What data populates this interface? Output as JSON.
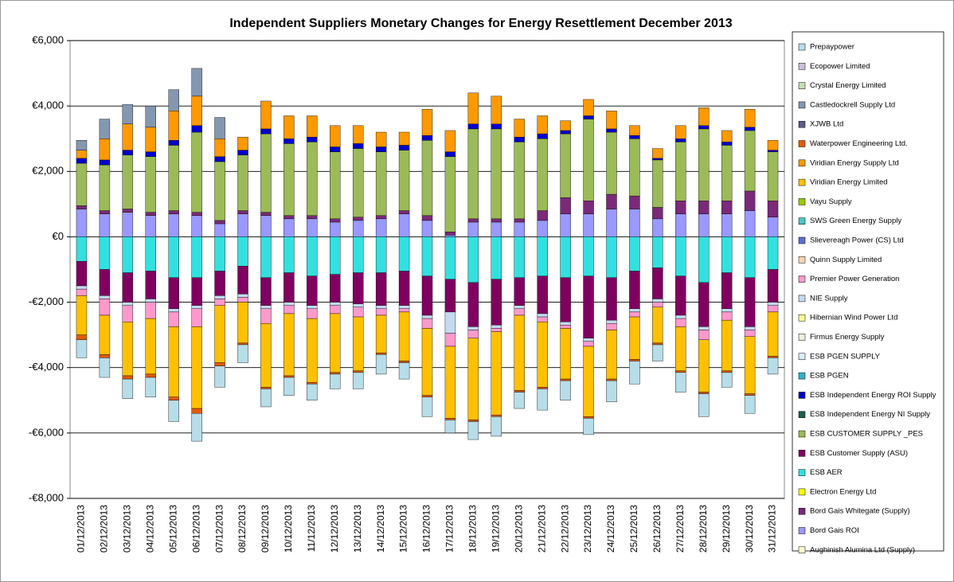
{
  "chart_data": {
    "type": "bar",
    "stacked": true,
    "title": "Independent Suppliers Monetary Changes for Energy Resettlement December 2013",
    "categories": [
      "01/12/2013",
      "02/12/2013",
      "03/12/2013",
      "04/12/2013",
      "05/12/2013",
      "06/12/2013",
      "07/12/2013",
      "08/12/2013",
      "09/12/2013",
      "10/12/2013",
      "11/12/2013",
      "12/12/2013",
      "13/12/2013",
      "14/12/2013",
      "15/12/2013",
      "16/12/2013",
      "17/12/2013",
      "18/12/2013",
      "19/12/2013",
      "20/12/2013",
      "21/12/2013",
      "22/12/2013",
      "23/12/2013",
      "24/12/2013",
      "25/12/2013",
      "26/12/2013",
      "27/12/2013",
      "28/12/2013",
      "29/12/2013",
      "30/12/2013",
      "31/12/2013"
    ],
    "ylim": [
      -8000,
      6000
    ],
    "yticks": [
      {
        "value": -8000,
        "label": "-€8,000"
      },
      {
        "value": -6000,
        "label": "-€6,000"
      },
      {
        "value": -4000,
        "label": "-€4,000"
      },
      {
        "value": -2000,
        "label": "-€2,000"
      },
      {
        "value": 0,
        "label": "€0"
      },
      {
        "value": 2000,
        "label": "€2,000"
      },
      {
        "value": 4000,
        "label": "€4,000"
      },
      {
        "value": 6000,
        "label": "€6,000"
      }
    ],
    "grid": true,
    "legend": "right",
    "series": [
      {
        "name": "Aughinish Alumina Ltd (Supply)",
        "color": "#ffffcc",
        "values": [
          0,
          0,
          0,
          0,
          0,
          0,
          0,
          0,
          0,
          0,
          0,
          0,
          0,
          0,
          0,
          0,
          0,
          0,
          0,
          0,
          0,
          0,
          0,
          0,
          0,
          0,
          0,
          0,
          0,
          0,
          0
        ]
      },
      {
        "name": "Bord Gais ROI",
        "color": "#9999ff",
        "values": [
          850,
          700,
          750,
          650,
          700,
          650,
          400,
          700,
          650,
          550,
          550,
          450,
          500,
          550,
          700,
          500,
          50,
          450,
          450,
          450,
          500,
          700,
          700,
          850,
          850,
          550,
          700,
          700,
          700,
          800,
          600
        ]
      },
      {
        "name": "Bord Gais Whitegate (Supply)",
        "color": "#7a2a78",
        "values": [
          100,
          100,
          100,
          100,
          100,
          100,
          100,
          100,
          100,
          100,
          100,
          100,
          100,
          100,
          100,
          150,
          100,
          100,
          100,
          100,
          300,
          500,
          400,
          450,
          400,
          350,
          400,
          400,
          400,
          600,
          500
        ]
      },
      {
        "name": "Electron Energy Ltd",
        "color": "#ffff00",
        "values": [
          0,
          0,
          0,
          0,
          0,
          0,
          0,
          0,
          0,
          0,
          0,
          0,
          0,
          0,
          0,
          0,
          0,
          0,
          0,
          0,
          0,
          0,
          0,
          0,
          0,
          0,
          0,
          0,
          0,
          0,
          0
        ]
      },
      {
        "name": "ESB AER",
        "color": "#33e0e0",
        "values": [
          -750,
          -1000,
          -1100,
          -1050,
          -1250,
          -1250,
          -1050,
          -900,
          -1250,
          -1100,
          -1200,
          -1150,
          -1100,
          -1100,
          -1050,
          -1200,
          -1300,
          -1400,
          -1300,
          -1250,
          -1200,
          -1250,
          -1200,
          -1250,
          -1050,
          -950,
          -1200,
          -1400,
          -1100,
          -1250,
          -1000
        ]
      },
      {
        "name": "ESB Customer Supply (ASU)",
        "color": "#800060",
        "values": [
          -750,
          -800,
          -900,
          -850,
          -950,
          -850,
          -750,
          -850,
          -850,
          -900,
          -900,
          -850,
          -950,
          -1000,
          -1050,
          -1200,
          -1000,
          -1350,
          -1400,
          -850,
          -1150,
          -1350,
          -1900,
          -1300,
          -1150,
          -950,
          -1200,
          -1350,
          -1100,
          -1500,
          -1000
        ]
      },
      {
        "name": "ESB CUSTOMER SUPPLY _PES",
        "color": "#9bbb59",
        "values": [
          1300,
          1400,
          1650,
          1700,
          2000,
          2450,
          1800,
          1700,
          2400,
          2200,
          2250,
          2050,
          2100,
          1950,
          1850,
          2300,
          2300,
          2750,
          2750,
          2350,
          2200,
          1950,
          2500,
          1900,
          1750,
          1450,
          1800,
          2200,
          1700,
          1850,
          1500
        ]
      },
      {
        "name": "ESB Independent Energy NI Supply",
        "color": "#1f5f4f",
        "values": [
          0,
          0,
          0,
          0,
          0,
          0,
          0,
          0,
          0,
          0,
          0,
          0,
          0,
          0,
          0,
          0,
          0,
          0,
          0,
          0,
          0,
          0,
          0,
          0,
          0,
          0,
          0,
          0,
          0,
          0,
          0
        ]
      },
      {
        "name": "ESB Independent Energy ROI Supply",
        "color": "#0000cc",
        "values": [
          150,
          150,
          150,
          150,
          150,
          200,
          150,
          150,
          150,
          150,
          150,
          150,
          150,
          150,
          150,
          150,
          150,
          150,
          150,
          150,
          150,
          100,
          100,
          100,
          100,
          50,
          100,
          100,
          100,
          100,
          50
        ]
      },
      {
        "name": "ESB PGEN",
        "color": "#31b0c8",
        "values": [
          0,
          0,
          0,
          0,
          0,
          0,
          0,
          0,
          0,
          0,
          0,
          0,
          0,
          0,
          0,
          0,
          0,
          0,
          0,
          0,
          0,
          0,
          0,
          0,
          0,
          0,
          0,
          0,
          0,
          0,
          0
        ]
      },
      {
        "name": "ESB PGEN SUPPLY",
        "color": "#daeef3",
        "values": [
          0,
          0,
          0,
          0,
          0,
          0,
          0,
          0,
          0,
          0,
          0,
          0,
          0,
          0,
          0,
          0,
          0,
          0,
          0,
          0,
          0,
          0,
          0,
          0,
          0,
          0,
          0,
          0,
          0,
          0,
          0
        ]
      },
      {
        "name": "Firmus Energy Supply",
        "color": "#ebf1de",
        "values": [
          0,
          0,
          0,
          0,
          0,
          0,
          0,
          0,
          0,
          0,
          0,
          0,
          0,
          0,
          0,
          0,
          0,
          0,
          0,
          0,
          0,
          0,
          0,
          0,
          0,
          0,
          0,
          0,
          0,
          0,
          0
        ]
      },
      {
        "name": "Hibernian Wind Power Ltd",
        "color": "#ffff99",
        "values": [
          0,
          0,
          0,
          0,
          0,
          0,
          0,
          0,
          0,
          0,
          0,
          0,
          0,
          0,
          0,
          0,
          0,
          0,
          0,
          0,
          0,
          0,
          0,
          0,
          0,
          0,
          0,
          0,
          0,
          0,
          0
        ]
      },
      {
        "name": "NIE Supply",
        "color": "#c5d9f1",
        "values": [
          -100,
          -100,
          -100,
          -100,
          -100,
          -100,
          -100,
          -100,
          -100,
          -100,
          -100,
          -100,
          -100,
          -100,
          -100,
          -100,
          -650,
          -100,
          -100,
          -100,
          -100,
          -100,
          -100,
          -100,
          -100,
          -100,
          -100,
          -100,
          -100,
          -100,
          -100
        ]
      },
      {
        "name": "Premier Power Generation",
        "color": "#ff99cc",
        "values": [
          -200,
          -500,
          -500,
          -500,
          -450,
          -550,
          -200,
          -150,
          -450,
          -250,
          -300,
          -250,
          -300,
          -200,
          -100,
          -300,
          -400,
          -250,
          -100,
          -200,
          -150,
          -100,
          -150,
          -200,
          -150,
          -150,
          -250,
          -300,
          -250,
          -200,
          -200
        ]
      },
      {
        "name": "Quinn Supply Limited",
        "color": "#fcd5b4",
        "values": [
          0,
          0,
          0,
          0,
          0,
          0,
          0,
          0,
          0,
          0,
          0,
          0,
          0,
          0,
          0,
          0,
          0,
          0,
          0,
          0,
          0,
          0,
          0,
          0,
          0,
          0,
          0,
          0,
          0,
          0,
          0
        ]
      },
      {
        "name": "Slievereagh Power (CS) Ltd",
        "color": "#5b6fd6",
        "values": [
          0,
          0,
          0,
          0,
          0,
          0,
          0,
          0,
          0,
          0,
          0,
          0,
          0,
          0,
          0,
          0,
          0,
          0,
          0,
          0,
          0,
          0,
          0,
          0,
          0,
          0,
          0,
          0,
          0,
          0,
          0
        ]
      },
      {
        "name": "SWS Green Energy Supply",
        "color": "#4bc6c6",
        "values": [
          0,
          0,
          0,
          0,
          0,
          0,
          0,
          0,
          0,
          0,
          0,
          0,
          0,
          0,
          0,
          0,
          0,
          0,
          0,
          0,
          0,
          0,
          0,
          0,
          0,
          0,
          0,
          0,
          0,
          0,
          0
        ]
      },
      {
        "name": "Vayu Supply",
        "color": "#99cc00",
        "values": [
          0,
          0,
          0,
          0,
          0,
          0,
          0,
          0,
          0,
          0,
          0,
          0,
          0,
          0,
          0,
          0,
          0,
          0,
          0,
          0,
          0,
          0,
          0,
          0,
          0,
          0,
          0,
          0,
          0,
          0,
          0
        ]
      },
      {
        "name": "Viridian Energy Limited",
        "color": "#ffc000",
        "values": [
          -1200,
          -1200,
          -1650,
          -1700,
          -2150,
          -2500,
          -1750,
          -1250,
          -1950,
          -1900,
          -1950,
          -1800,
          -1650,
          -1150,
          -1500,
          -2050,
          -2200,
          -2500,
          -2550,
          -2300,
          -2000,
          -1550,
          -2150,
          -1500,
          -1300,
          -1100,
          -1350,
          -1600,
          -1550,
          -1750,
          -1350
        ]
      },
      {
        "name": "Viridian Energy Supply Ltd",
        "color": "#ff9900",
        "values": [
          250,
          650,
          800,
          750,
          900,
          900,
          550,
          400,
          850,
          700,
          650,
          650,
          550,
          450,
          400,
          800,
          650,
          950,
          850,
          550,
          550,
          300,
          500,
          550,
          300,
          300,
          400,
          550,
          350,
          550,
          300
        ]
      },
      {
        "name": "Waterpower Engineering Ltd.",
        "color": "#e25a0a",
        "values": [
          -150,
          -100,
          -100,
          -100,
          -100,
          -150,
          -100,
          -50,
          -50,
          -50,
          -50,
          -50,
          -50,
          -50,
          -50,
          -50,
          -50,
          -50,
          -50,
          -50,
          -50,
          -50,
          -50,
          -50,
          -50,
          -50,
          -50,
          -50,
          -50,
          -50,
          -50
        ]
      },
      {
        "name": "XJWB Ltd",
        "color": "#5a5a8a",
        "values": [
          0,
          0,
          0,
          0,
          0,
          0,
          0,
          0,
          0,
          0,
          0,
          0,
          0,
          0,
          0,
          0,
          0,
          0,
          0,
          0,
          0,
          0,
          0,
          0,
          0,
          0,
          0,
          0,
          0,
          0,
          0
        ]
      },
      {
        "name": "Castledockrell Supply Ltd",
        "color": "#8497b0",
        "values": [
          300,
          600,
          600,
          650,
          650,
          850,
          650,
          0,
          0,
          0,
          0,
          0,
          0,
          0,
          0,
          0,
          0,
          0,
          0,
          0,
          0,
          0,
          0,
          0,
          0,
          0,
          0,
          0,
          0,
          0,
          0
        ]
      },
      {
        "name": "Crystal Energy Limited",
        "color": "#c4e0b4",
        "values": [
          0,
          0,
          0,
          0,
          0,
          0,
          0,
          0,
          0,
          0,
          0,
          0,
          0,
          0,
          0,
          0,
          0,
          0,
          0,
          0,
          0,
          0,
          0,
          0,
          0,
          0,
          0,
          0,
          0,
          0,
          0
        ]
      },
      {
        "name": "Ecopower Limited",
        "color": "#ccc0da",
        "values": [
          0,
          0,
          0,
          0,
          0,
          0,
          0,
          0,
          0,
          0,
          0,
          0,
          0,
          0,
          0,
          0,
          0,
          0,
          0,
          0,
          0,
          0,
          0,
          0,
          0,
          0,
          0,
          0,
          0,
          0,
          0
        ]
      },
      {
        "name": "Prepaypower",
        "color": "#b7dde8",
        "values": [
          -550,
          -600,
          -600,
          -600,
          -650,
          -850,
          -650,
          -550,
          -550,
          -550,
          -500,
          -450,
          -500,
          -600,
          -500,
          -600,
          -400,
          -550,
          -600,
          -500,
          -650,
          -600,
          -500,
          -650,
          -700,
          -500,
          -600,
          -700,
          -450,
          -550,
          -500
        ]
      }
    ]
  }
}
